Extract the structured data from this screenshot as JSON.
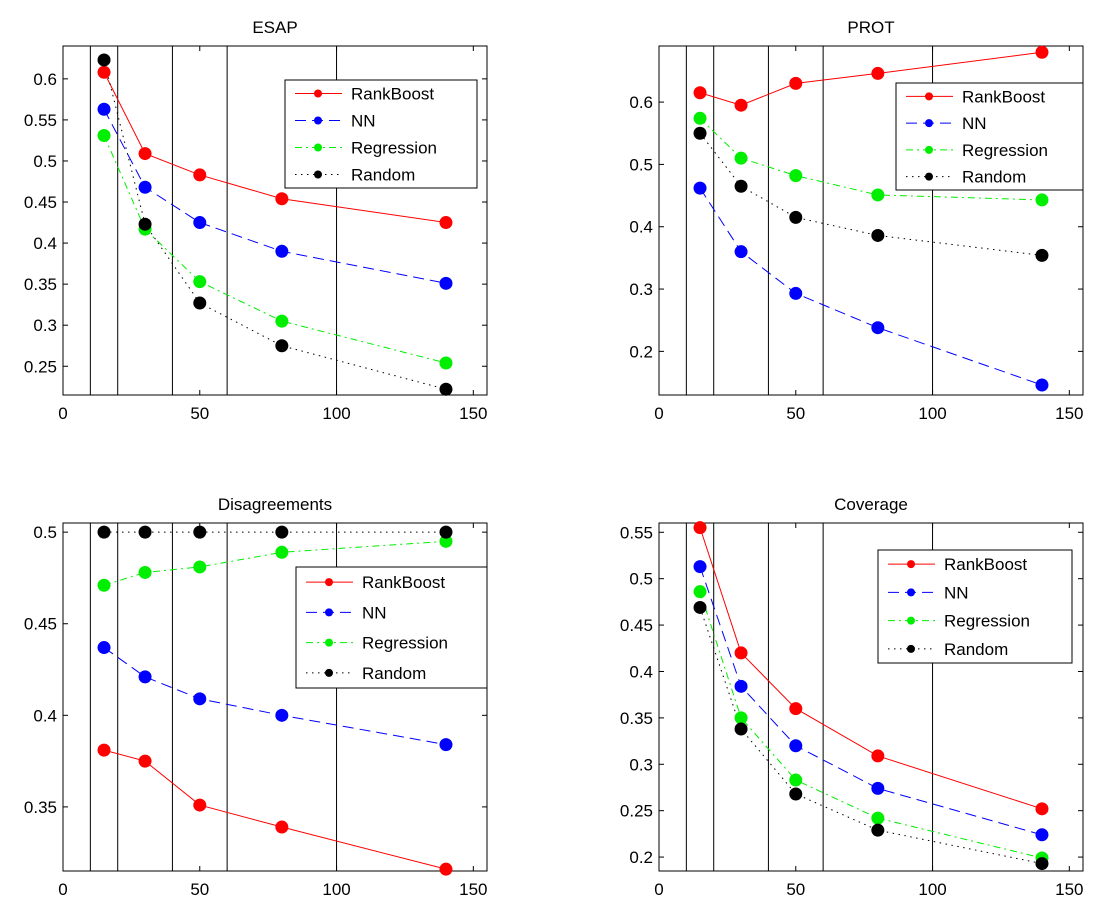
{
  "chart_data": [
    {
      "type": "line",
      "title": "ESAP",
      "xlim": [
        0,
        155
      ],
      "ylim": [
        0.215,
        0.64
      ],
      "xticks": [
        0,
        50,
        100,
        150
      ],
      "yticks": [
        0.25,
        0.3,
        0.35,
        0.4,
        0.45,
        0.5,
        0.55,
        0.6
      ],
      "vlines": [
        10,
        20,
        40,
        60,
        100
      ],
      "legend_position": "top-right",
      "x": [
        15,
        30,
        50,
        80,
        140
      ],
      "series": [
        {
          "name": "RankBoost",
          "values": [
            0.608,
            0.509,
            0.483,
            0.454,
            0.425
          ]
        },
        {
          "name": "NN",
          "values": [
            0.563,
            0.468,
            0.425,
            0.39,
            0.351
          ]
        },
        {
          "name": "Regression",
          "values": [
            0.531,
            0.417,
            0.353,
            0.305,
            0.254
          ]
        },
        {
          "name": "Random",
          "values": [
            0.623,
            0.423,
            0.327,
            0.275,
            0.222
          ]
        }
      ]
    },
    {
      "type": "line",
      "title": "PROT",
      "xlim": [
        0,
        155
      ],
      "ylim": [
        0.13,
        0.69
      ],
      "xticks": [
        0,
        50,
        100,
        150
      ],
      "yticks": [
        0.2,
        0.3,
        0.4,
        0.5,
        0.6
      ],
      "vlines": [
        10,
        20,
        40,
        60,
        100
      ],
      "legend_position": "top-right",
      "x": [
        15,
        30,
        50,
        80,
        140
      ],
      "series": [
        {
          "name": "RankBoost",
          "values": [
            0.615,
            0.595,
            0.63,
            0.646,
            0.68
          ]
        },
        {
          "name": "NN",
          "values": [
            0.462,
            0.36,
            0.293,
            0.238,
            0.146
          ]
        },
        {
          "name": "Regression",
          "values": [
            0.574,
            0.51,
            0.482,
            0.451,
            0.443
          ]
        },
        {
          "name": "Random",
          "values": [
            0.55,
            0.465,
            0.415,
            0.386,
            0.354
          ]
        }
      ]
    },
    {
      "type": "line",
      "title": "Disagreements",
      "xlim": [
        0,
        155
      ],
      "ylim": [
        0.315,
        0.505
      ],
      "xticks": [
        0,
        50,
        100,
        150
      ],
      "yticks": [
        0.35,
        0.4,
        0.45,
        0.5
      ],
      "vlines": [
        10,
        20,
        40,
        60,
        100
      ],
      "legend_position": "top-right",
      "x": [
        15,
        30,
        50,
        80,
        140
      ],
      "series": [
        {
          "name": "RankBoost",
          "values": [
            0.381,
            0.375,
            0.351,
            0.339,
            0.316
          ]
        },
        {
          "name": "NN",
          "values": [
            0.437,
            0.421,
            0.409,
            0.4,
            0.384
          ]
        },
        {
          "name": "Regression",
          "values": [
            0.471,
            0.478,
            0.481,
            0.489,
            0.495
          ]
        },
        {
          "name": "Random",
          "values": [
            0.5,
            0.5,
            0.5,
            0.5,
            0.5
          ]
        }
      ]
    },
    {
      "type": "line",
      "title": "Coverage",
      "xlim": [
        0,
        155
      ],
      "ylim": [
        0.185,
        0.56
      ],
      "xticks": [
        0,
        50,
        100,
        150
      ],
      "yticks": [
        0.2,
        0.25,
        0.3,
        0.35,
        0.4,
        0.45,
        0.5,
        0.55
      ],
      "vlines": [
        10,
        20,
        40,
        60,
        100
      ],
      "legend_position": "top-right",
      "x": [
        15,
        30,
        50,
        80,
        140
      ],
      "series": [
        {
          "name": "RankBoost",
          "values": [
            0.555,
            0.42,
            0.36,
            0.309,
            0.252
          ]
        },
        {
          "name": "NN",
          "values": [
            0.513,
            0.384,
            0.32,
            0.274,
            0.224
          ]
        },
        {
          "name": "Regression",
          "values": [
            0.486,
            0.35,
            0.283,
            0.242,
            0.199
          ]
        },
        {
          "name": "Random",
          "values": [
            0.469,
            0.338,
            0.268,
            0.229,
            0.193
          ]
        }
      ]
    }
  ],
  "style": {
    "series_colors": [
      "#ff0000",
      "#0000ff",
      "#00ee00",
      "#000000"
    ],
    "series_dash": [
      "solid",
      "dashed",
      "dashdot",
      "dotted"
    ]
  }
}
